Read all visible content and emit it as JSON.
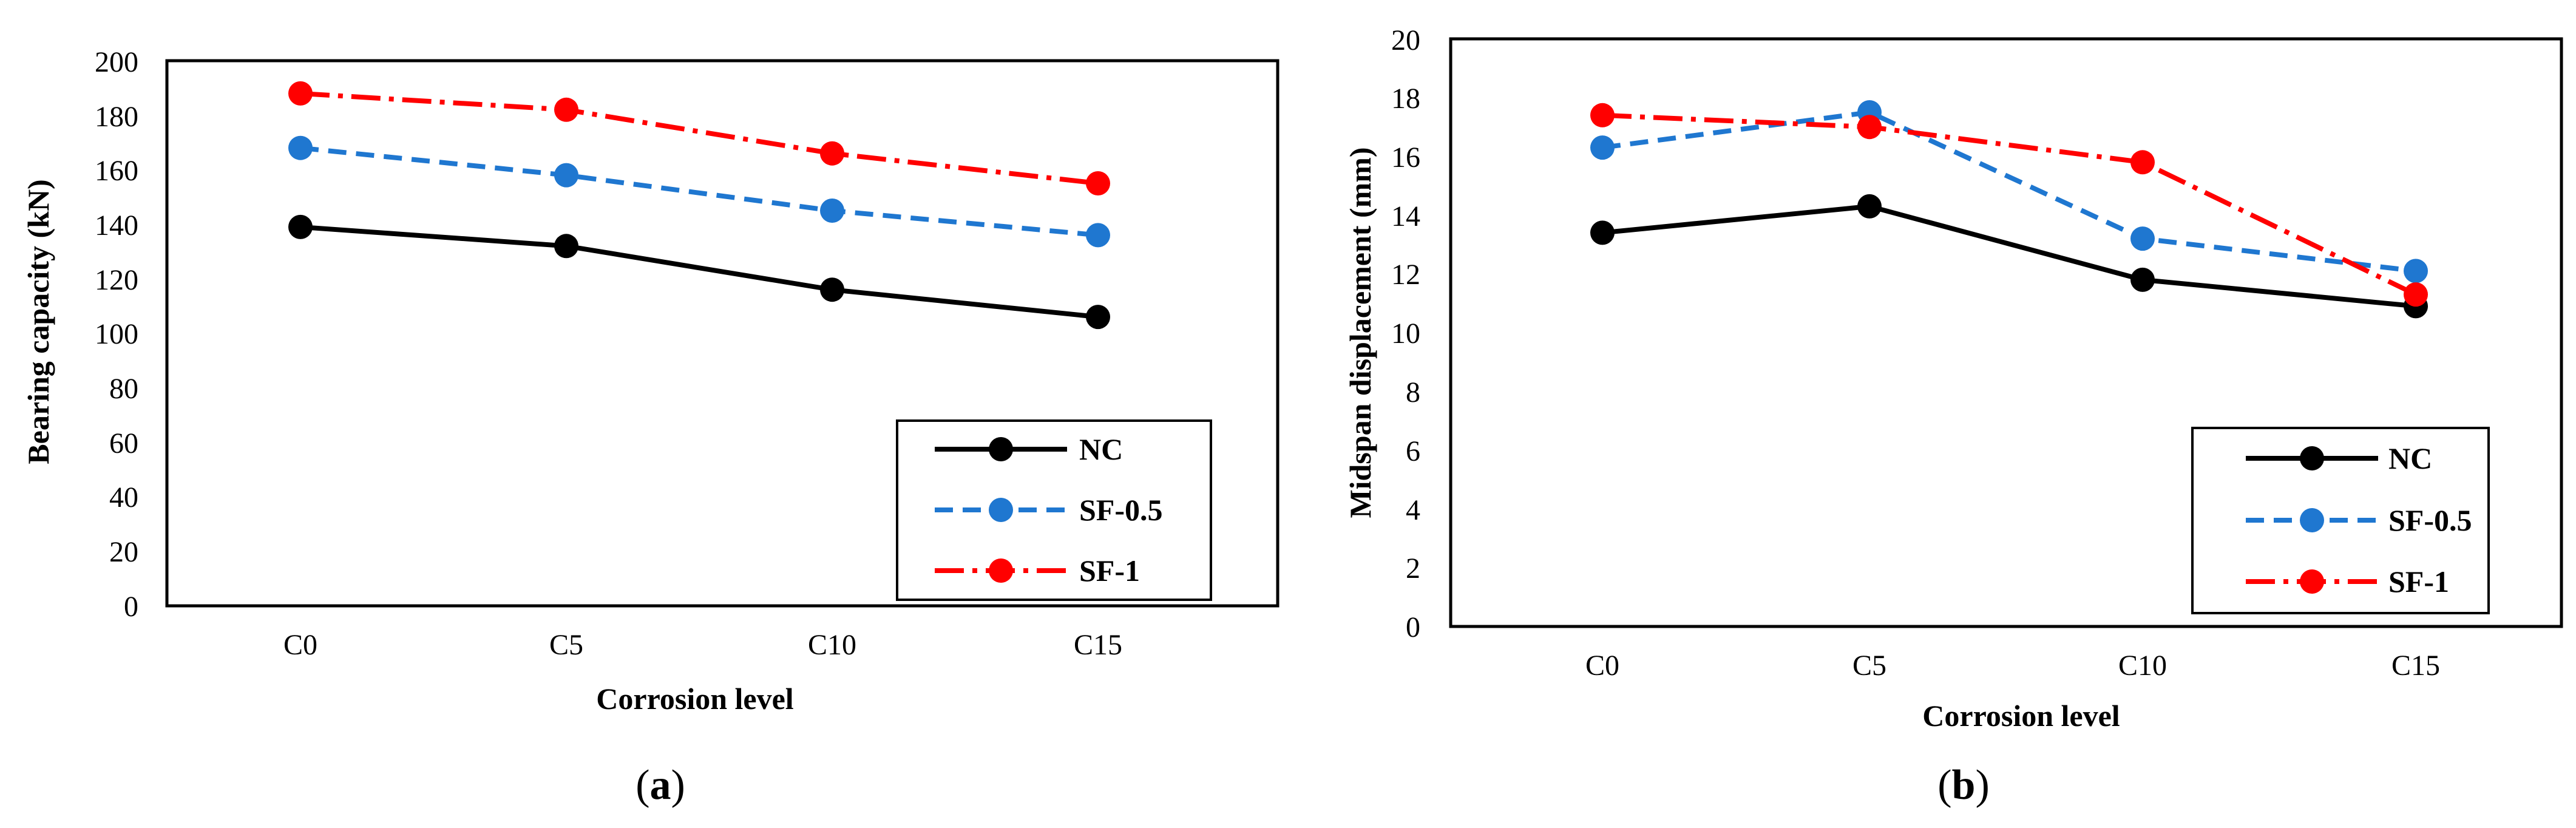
{
  "chart_data": [
    {
      "type": "line",
      "panel_label_open": "(",
      "panel_label_letter": "a",
      "panel_label_close": ")",
      "categories": [
        "C0",
        "C5",
        "C10",
        "C15"
      ],
      "xlabel": "Corrosion level",
      "ylabel": "Bearing capacity (kN)",
      "ylim": [
        0,
        200
      ],
      "ytick_step": 20,
      "ytick_labels": [
        "0",
        "20",
        "40",
        "60",
        "80",
        "100",
        "120",
        "140",
        "160",
        "180",
        "200"
      ],
      "grid": false,
      "legend_position": "bottom-right",
      "series": [
        {
          "name": "NC",
          "values": [
            139,
            132,
            116,
            106
          ],
          "color": "#000000",
          "dash": "solid"
        },
        {
          "name": "SF-0.5",
          "values": [
            168,
            158,
            145,
            136
          ],
          "color": "#1f77d0",
          "dash": "dashed"
        },
        {
          "name": "SF-1",
          "values": [
            188,
            182,
            166,
            155
          ],
          "color": "#ff0000",
          "dash": "dashdot"
        }
      ]
    },
    {
      "type": "line",
      "panel_label_open": "(",
      "panel_label_letter": "b",
      "panel_label_close": ")",
      "categories": [
        "C0",
        "C5",
        "C10",
        "C15"
      ],
      "xlabel": "Corrosion level",
      "ylabel": "Midspan displacement (mm)",
      "ylim": [
        0,
        20
      ],
      "ytick_step": 2,
      "ytick_labels": [
        "0",
        "2",
        "4",
        "6",
        "8",
        "10",
        "12",
        "14",
        "16",
        "18",
        "20"
      ],
      "grid": false,
      "legend_position": "bottom-right",
      "series": [
        {
          "name": "NC",
          "values": [
            13.4,
            14.3,
            11.8,
            10.9
          ],
          "color": "#000000",
          "dash": "solid"
        },
        {
          "name": "SF-0.5",
          "values": [
            16.3,
            17.5,
            13.2,
            12.1
          ],
          "color": "#1f77d0",
          "dash": "dashed"
        },
        {
          "name": "SF-1",
          "values": [
            17.4,
            17.0,
            15.8,
            11.3
          ],
          "color": "#ff0000",
          "dash": "dashdot"
        }
      ]
    }
  ]
}
